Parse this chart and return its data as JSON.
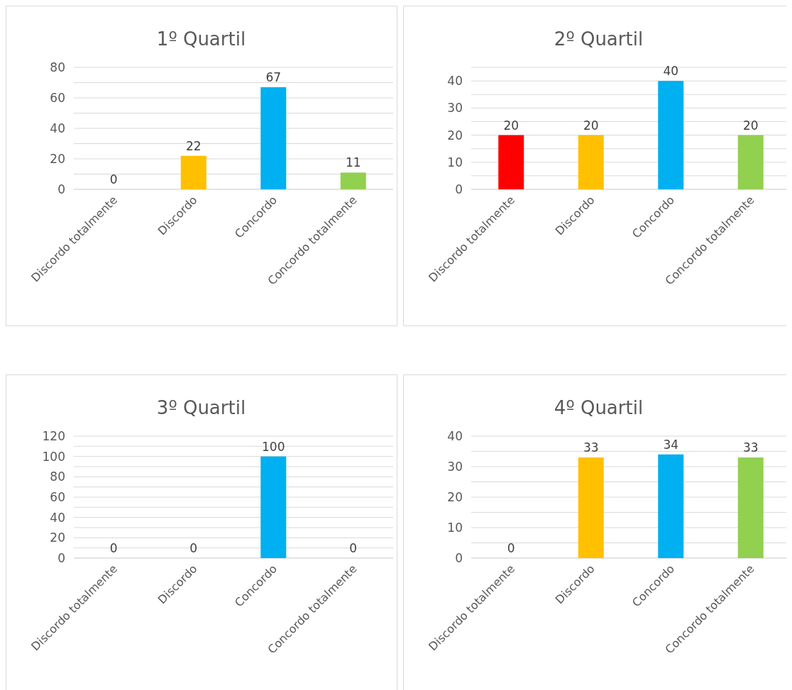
{
  "chart_data": [
    {
      "type": "bar",
      "title": "1º Quartil",
      "categories": [
        "Discordo totalmente",
        "Discordo",
        "Concordo",
        "Concordo totalmente"
      ],
      "values": [
        0,
        22,
        67,
        11
      ],
      "colors": [
        "#ff0000",
        "#ffc000",
        "#00b0f0",
        "#92d050"
      ],
      "ylim": [
        0,
        80
      ],
      "yticks": [
        0,
        {
          "value": 10,
          "label": null
        },
        20,
        {
          "value": 30,
          "label": null
        },
        40,
        {
          "value": 50,
          "label": null
        },
        60,
        {
          "value": 70,
          "label": null
        },
        80
      ],
      "grid": "y",
      "data_labels": true
    },
    {
      "type": "bar",
      "title": "2º Quartil",
      "categories": [
        "Discordo totalmente",
        "Discordo",
        "Concordo",
        "Concordo totalmente"
      ],
      "values": [
        20,
        20,
        40,
        20
      ],
      "colors": [
        "#ff0000",
        "#ffc000",
        "#00b0f0",
        "#92d050"
      ],
      "ylim": [
        0,
        45
      ],
      "yticks": [
        0,
        {
          "value": 5,
          "label": null
        },
        10,
        {
          "value": 15,
          "label": null
        },
        20,
        {
          "value": 25,
          "label": null
        },
        30,
        {
          "value": 35,
          "label": null
        },
        40,
        {
          "value": 45,
          "label": null
        }
      ],
      "grid": "y",
      "data_labels": true
    },
    {
      "type": "bar",
      "title": "3º Quartil",
      "categories": [
        "Discordo totalmente",
        "Discordo",
        "Concordo",
        "Concordo totalmente"
      ],
      "values": [
        0,
        0,
        100,
        0
      ],
      "colors": [
        "#ff0000",
        "#ffc000",
        "#00b0f0",
        "#92d050"
      ],
      "ylim": [
        0,
        120
      ],
      "yticks": [
        0,
        {
          "value": 10,
          "label": null
        },
        20,
        {
          "value": 30,
          "label": null
        },
        40,
        {
          "value": 50,
          "label": null
        },
        60,
        {
          "value": 70,
          "label": null
        },
        80,
        {
          "value": 90,
          "label": null
        },
        100,
        {
          "value": 110,
          "label": null
        },
        120
      ],
      "grid": "y",
      "data_labels": true
    },
    {
      "type": "bar",
      "title": "4º Quartil",
      "categories": [
        "Discordo totalmente",
        "Discordo",
        "Concordo",
        "Concordo totalmente"
      ],
      "values": [
        0,
        33,
        34,
        33
      ],
      "colors": [
        "#ff0000",
        "#ffc000",
        "#00b0f0",
        "#92d050"
      ],
      "ylim": [
        0,
        40
      ],
      "yticks": [
        0,
        {
          "value": 5,
          "label": null
        },
        10,
        {
          "value": 15,
          "label": null
        },
        20,
        {
          "value": 25,
          "label": null
        },
        30,
        {
          "value": 35,
          "label": null
        },
        40
      ],
      "grid": "y",
      "data_labels": true
    }
  ]
}
